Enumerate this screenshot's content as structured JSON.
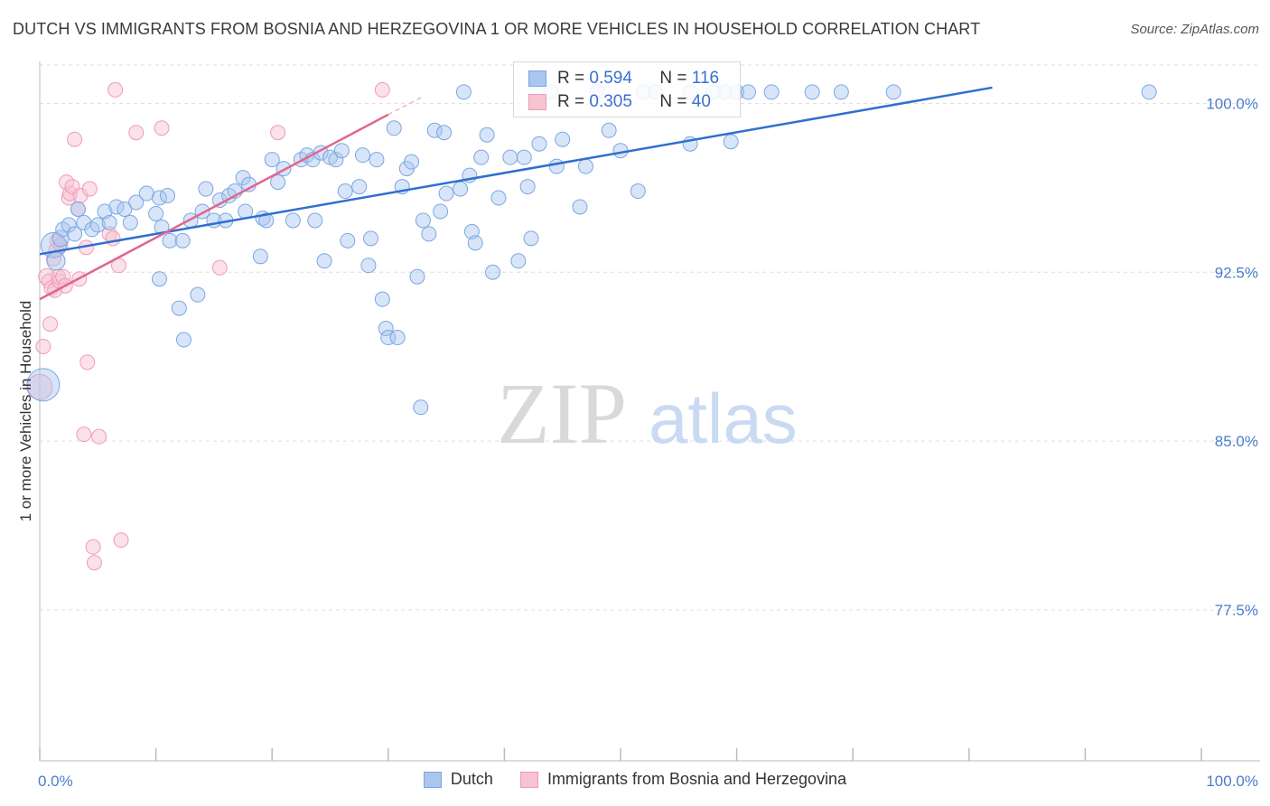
{
  "title": "DUTCH VS IMMIGRANTS FROM BOSNIA AND HERZEGOVINA 1 OR MORE VEHICLES IN HOUSEHOLD CORRELATION CHART",
  "source": "Source: ZipAtlas.com",
  "watermark": {
    "zip": "ZIP",
    "atlas": "atlas"
  },
  "legend": {
    "dutch": {
      "r_label": "R =",
      "r_value": "0.594",
      "n_label": "N =",
      "n_value": "116"
    },
    "bosnia": {
      "r_label": "R =",
      "r_value": "0.305",
      "n_label": "N =",
      "n_value": "40"
    }
  },
  "bottom_legend": {
    "dutch": "Dutch",
    "bosnia": "Immigrants from Bosnia and Herzegovina"
  },
  "colors": {
    "dutch_fill": "#a9c6ef",
    "dutch_stroke": "#7aa7e2",
    "dutch_line": "#2f6fcf",
    "bosnia_fill": "#f7c3d3",
    "bosnia_stroke": "#ef9bb6",
    "bosnia_line": "#e0668f",
    "tick_text": "#4a7dc9",
    "grid": "#dddddd"
  },
  "chart_data": {
    "type": "scatter",
    "title": "DUTCH VS IMMIGRANTS FROM BOSNIA AND HERZEGOVINA 1 OR MORE VEHICLES IN HOUSEHOLD CORRELATION CHART",
    "xlabel": "",
    "ylabel": "1 or more Vehicles in Household",
    "xlim": [
      0,
      100
    ],
    "ylim": [
      70.8,
      101.7
    ],
    "x_tick_labels": [
      "0.0%",
      "100.0%"
    ],
    "y_ticks": [
      100.0,
      92.5,
      85.0,
      77.5
    ],
    "y_tick_labels": [
      "100.0%",
      "92.5%",
      "85.0%",
      "77.5%"
    ],
    "series": [
      {
        "name": "Dutch",
        "trend": {
          "x": [
            0,
            82
          ],
          "y": [
            93.3,
            100.7
          ]
        },
        "points": [
          [
            0.3,
            87.5,
            18
          ],
          [
            1.2,
            93.7,
            14
          ],
          [
            1.4,
            93.0,
            10
          ],
          [
            1.8,
            94.0,
            9
          ],
          [
            2.0,
            94.4,
            8
          ],
          [
            2.5,
            94.6,
            8
          ],
          [
            3.0,
            94.2,
            8
          ],
          [
            3.3,
            95.3,
            8
          ],
          [
            3.8,
            94.7,
            8
          ],
          [
            4.5,
            94.4,
            8
          ],
          [
            5.0,
            94.6,
            8
          ],
          [
            5.6,
            95.2,
            8
          ],
          [
            6.0,
            94.7,
            8
          ],
          [
            6.6,
            95.4,
            8
          ],
          [
            7.3,
            95.3,
            8
          ],
          [
            7.8,
            94.7,
            8
          ],
          [
            8.3,
            95.6,
            8
          ],
          [
            9.2,
            96.0,
            8
          ],
          [
            10.0,
            95.1,
            8
          ],
          [
            10.3,
            95.8,
            8
          ],
          [
            10.3,
            92.2,
            8
          ],
          [
            10.5,
            94.5,
            8
          ],
          [
            11.0,
            95.9,
            8
          ],
          [
            11.2,
            93.9,
            8
          ],
          [
            12.0,
            90.9,
            8
          ],
          [
            12.3,
            93.9,
            8
          ],
          [
            12.4,
            89.5,
            8
          ],
          [
            13.0,
            94.8,
            8
          ],
          [
            13.6,
            91.5,
            8
          ],
          [
            14.0,
            95.2,
            8
          ],
          [
            14.3,
            96.2,
            8
          ],
          [
            15.0,
            94.8,
            8
          ],
          [
            15.5,
            95.7,
            8
          ],
          [
            16.0,
            94.8,
            8
          ],
          [
            16.3,
            95.9,
            8
          ],
          [
            16.8,
            96.1,
            8
          ],
          [
            17.5,
            96.7,
            8
          ],
          [
            17.7,
            95.2,
            8
          ],
          [
            18.0,
            96.4,
            8
          ],
          [
            19.0,
            93.2,
            8
          ],
          [
            19.2,
            94.9,
            8
          ],
          [
            19.5,
            94.8,
            8
          ],
          [
            20.0,
            97.5,
            8
          ],
          [
            20.5,
            96.5,
            8
          ],
          [
            21.0,
            97.1,
            8
          ],
          [
            21.8,
            94.8,
            8
          ],
          [
            22.5,
            97.5,
            8
          ],
          [
            23.0,
            97.7,
            8
          ],
          [
            23.5,
            97.5,
            8
          ],
          [
            23.7,
            94.8,
            8
          ],
          [
            24.2,
            97.8,
            8
          ],
          [
            24.5,
            93.0,
            8
          ],
          [
            25.0,
            97.6,
            8
          ],
          [
            25.5,
            97.5,
            8
          ],
          [
            26.0,
            97.9,
            8
          ],
          [
            26.3,
            96.1,
            8
          ],
          [
            26.5,
            93.9,
            8
          ],
          [
            27.5,
            96.3,
            8
          ],
          [
            27.8,
            97.7,
            8
          ],
          [
            28.3,
            92.8,
            8
          ],
          [
            28.5,
            94.0,
            8
          ],
          [
            29.0,
            97.5,
            8
          ],
          [
            29.5,
            91.3,
            8
          ],
          [
            29.8,
            90.0,
            8
          ],
          [
            30.0,
            89.6,
            8
          ],
          [
            30.5,
            98.9,
            8
          ],
          [
            30.8,
            89.6,
            8
          ],
          [
            31.2,
            96.3,
            8
          ],
          [
            31.6,
            97.1,
            8
          ],
          [
            32.0,
            97.4,
            8
          ],
          [
            32.5,
            92.3,
            8
          ],
          [
            32.8,
            86.5,
            8
          ],
          [
            33.0,
            94.8,
            8
          ],
          [
            33.5,
            94.2,
            8
          ],
          [
            34.0,
            98.8,
            8
          ],
          [
            34.5,
            95.2,
            8
          ],
          [
            34.8,
            98.7,
            8
          ],
          [
            35.0,
            96.0,
            8
          ],
          [
            36.2,
            96.2,
            8
          ],
          [
            36.5,
            100.5,
            8
          ],
          [
            37.0,
            96.8,
            8
          ],
          [
            37.2,
            94.3,
            8
          ],
          [
            37.5,
            93.8,
            8
          ],
          [
            38.0,
            97.6,
            8
          ],
          [
            38.5,
            98.6,
            8
          ],
          [
            39.0,
            92.5,
            8
          ],
          [
            39.5,
            95.8,
            8
          ],
          [
            40.5,
            97.6,
            8
          ],
          [
            41.2,
            93.0,
            8
          ],
          [
            41.7,
            97.6,
            8
          ],
          [
            42.0,
            96.3,
            8
          ],
          [
            42.3,
            94.0,
            8
          ],
          [
            43.0,
            98.2,
            8
          ],
          [
            44.0,
            100.5,
            8
          ],
          [
            44.5,
            97.2,
            8
          ],
          [
            45.0,
            98.4,
            8
          ],
          [
            46.5,
            95.4,
            8
          ],
          [
            47.0,
            97.2,
            8
          ],
          [
            48.0,
            100.5,
            8
          ],
          [
            49.0,
            98.8,
            8
          ],
          [
            50.0,
            97.9,
            8
          ],
          [
            51.5,
            96.1,
            8
          ],
          [
            52.0,
            100.5,
            8
          ],
          [
            53.0,
            100.5,
            8
          ],
          [
            56.0,
            100.5,
            8
          ],
          [
            58.0,
            100.5,
            8
          ],
          [
            59.0,
            100.5,
            8
          ],
          [
            60.0,
            100.5,
            8
          ],
          [
            61.0,
            100.5,
            8
          ],
          [
            63.0,
            100.5,
            8
          ],
          [
            66.5,
            100.5,
            8
          ],
          [
            69.0,
            100.5,
            8
          ],
          [
            73.5,
            100.5,
            8
          ],
          [
            95.5,
            100.5,
            8
          ],
          [
            59.5,
            98.3,
            8
          ],
          [
            56.0,
            98.2,
            8
          ]
        ]
      },
      {
        "name": "Immigrants from Bosnia and Herzegovina",
        "trend": {
          "x": [
            0,
            30
          ],
          "y": [
            91.3,
            99.5
          ]
        },
        "trend_dashed": {
          "x": [
            30,
            33
          ],
          "y": [
            99.5,
            100.3
          ]
        },
        "points": [
          [
            0.0,
            87.4,
            14
          ],
          [
            0.3,
            89.2,
            8
          ],
          [
            0.6,
            92.3,
            9
          ],
          [
            0.8,
            92.1,
            8
          ],
          [
            0.9,
            90.2,
            8
          ],
          [
            1.0,
            91.8,
            8
          ],
          [
            1.2,
            93.1,
            8
          ],
          [
            1.3,
            91.7,
            8
          ],
          [
            1.4,
            93.5,
            8
          ],
          [
            1.5,
            93.9,
            8
          ],
          [
            1.6,
            92.3,
            8
          ],
          [
            1.7,
            92.1,
            8
          ],
          [
            1.8,
            93.7,
            8
          ],
          [
            2.0,
            92.3,
            8
          ],
          [
            2.2,
            91.9,
            8
          ],
          [
            2.3,
            96.5,
            8
          ],
          [
            2.5,
            95.8,
            8
          ],
          [
            2.6,
            96.0,
            8
          ],
          [
            2.8,
            96.3,
            8
          ],
          [
            3.0,
            98.4,
            8
          ],
          [
            3.3,
            95.3,
            8
          ],
          [
            3.4,
            92.2,
            8
          ],
          [
            3.5,
            95.9,
            8
          ],
          [
            3.8,
            85.3,
            8
          ],
          [
            4.0,
            93.6,
            8
          ],
          [
            4.1,
            88.5,
            8
          ],
          [
            4.3,
            96.2,
            8
          ],
          [
            4.6,
            80.3,
            8
          ],
          [
            4.7,
            79.6,
            8
          ],
          [
            5.1,
            85.2,
            8
          ],
          [
            6.0,
            94.2,
            8
          ],
          [
            6.3,
            94.0,
            8
          ],
          [
            6.8,
            92.8,
            8
          ],
          [
            6.5,
            100.6,
            8
          ],
          [
            7.0,
            80.6,
            8
          ],
          [
            8.3,
            98.7,
            8
          ],
          [
            10.5,
            98.9,
            8
          ],
          [
            15.5,
            92.7,
            8
          ],
          [
            20.5,
            98.7,
            8
          ],
          [
            29.5,
            100.6,
            8
          ]
        ]
      }
    ]
  }
}
